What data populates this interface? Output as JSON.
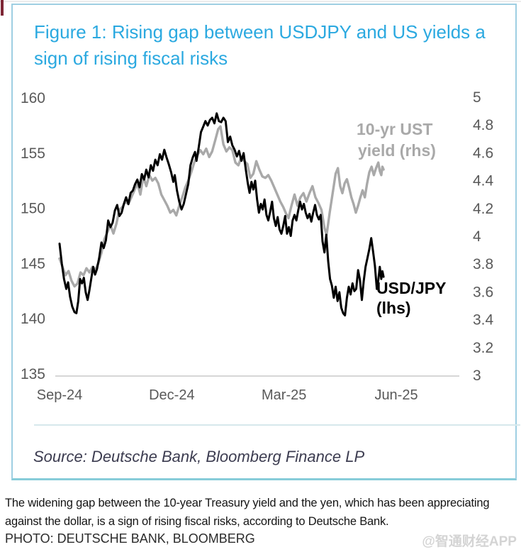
{
  "figure": {
    "title": "Figure 1: Rising gap between USDJPY and US yields a sign of rising fiscal risks",
    "source": "Source: Deutsche Bank, Bloomberg Finance LP"
  },
  "caption": {
    "text": "The widening gap between the 10-year Treasury yield and the yen, which has been appreciating against the dollar, is a sign of rising fiscal risks, according to Deutsche Bank.",
    "photo_credit": "PHOTO: DEUTSCHE BANK, BLOOMBERG",
    "watermark": "@智通财经APP"
  },
  "colors": {
    "title_blue": "#2ba9e0",
    "box_border": "#9ecfe2",
    "axis_text": "#595959",
    "usdjpy_line": "#000000",
    "ust_line": "#a9a9a9",
    "accent_mark": "#7d2635"
  },
  "chart_data": {
    "type": "line",
    "title": "Figure 1: Rising gap between USDJPY and US yields a sign of rising fiscal risks",
    "grid": false,
    "legend_position": "inline-annotations",
    "x_axis": {
      "ticks": [
        "Sep-24",
        "Dec-24",
        "Mar-25",
        "Jun-25"
      ],
      "tick_months": [
        0,
        3,
        6,
        9
      ],
      "unit": "months since Sep-2024"
    },
    "y_axis_left": {
      "ticks": [
        160,
        155,
        150,
        145,
        140,
        135
      ],
      "range": [
        135,
        160
      ]
    },
    "y_axis_right": {
      "ticks": [
        5,
        4.8,
        4.6,
        4.4,
        4.2,
        4,
        3.8,
        3.6,
        3.4,
        3.2,
        3
      ],
      "range": [
        3,
        5
      ]
    },
    "annotations": [
      {
        "lines": [
          "10-yr UST",
          "yield (rhs)"
        ],
        "color": "#a9a9a9",
        "bold": true
      },
      {
        "lines": [
          "USD/JPY",
          "(lhs)"
        ],
        "color": "#000000",
        "bold": true
      }
    ],
    "series": [
      {
        "name": "10-yr UST yield (rhs)",
        "axis": "right",
        "color": "#a9a9a9",
        "width": 3.4,
        "points": [
          [
            0.0,
            3.84
          ],
          [
            0.08,
            3.78
          ],
          [
            0.16,
            3.72
          ],
          [
            0.24,
            3.75
          ],
          [
            0.32,
            3.68
          ],
          [
            0.4,
            3.64
          ],
          [
            0.48,
            3.66
          ],
          [
            0.56,
            3.74
          ],
          [
            0.64,
            3.72
          ],
          [
            0.72,
            3.77
          ],
          [
            0.8,
            3.74
          ],
          [
            0.88,
            3.78
          ],
          [
            0.96,
            3.76
          ],
          [
            1.04,
            3.81
          ],
          [
            1.12,
            3.88
          ],
          [
            1.2,
            3.98
          ],
          [
            1.28,
            4.03
          ],
          [
            1.36,
            4.08
          ],
          [
            1.44,
            4.02
          ],
          [
            1.52,
            4.09
          ],
          [
            1.6,
            4.19
          ],
          [
            1.68,
            4.21
          ],
          [
            1.76,
            4.25
          ],
          [
            1.84,
            4.23
          ],
          [
            1.92,
            4.28
          ],
          [
            2.0,
            4.33
          ],
          [
            2.08,
            4.38
          ],
          [
            2.16,
            4.3
          ],
          [
            2.24,
            4.43
          ],
          [
            2.32,
            4.36
          ],
          [
            2.4,
            4.44
          ],
          [
            2.48,
            4.4
          ],
          [
            2.56,
            4.42
          ],
          [
            2.64,
            4.38
          ],
          [
            2.72,
            4.3
          ],
          [
            2.8,
            4.26
          ],
          [
            2.88,
            4.22
          ],
          [
            2.96,
            4.17
          ],
          [
            3.04,
            4.19
          ],
          [
            3.12,
            4.15
          ],
          [
            3.2,
            4.22
          ],
          [
            3.28,
            4.28
          ],
          [
            3.36,
            4.35
          ],
          [
            3.44,
            4.4
          ],
          [
            3.52,
            4.46
          ],
          [
            3.6,
            4.53
          ],
          [
            3.68,
            4.58
          ],
          [
            3.76,
            4.62
          ],
          [
            3.84,
            4.59
          ],
          [
            3.92,
            4.63
          ],
          [
            4.0,
            4.57
          ],
          [
            4.08,
            4.61
          ],
          [
            4.16,
            4.69
          ],
          [
            4.24,
            4.77
          ],
          [
            4.3,
            4.79
          ],
          [
            4.38,
            4.66
          ],
          [
            4.46,
            4.61
          ],
          [
            4.54,
            4.64
          ],
          [
            4.62,
            4.62
          ],
          [
            4.7,
            4.53
          ],
          [
            4.78,
            4.51
          ],
          [
            4.86,
            4.57
          ],
          [
            4.94,
            4.54
          ],
          [
            5.02,
            4.52
          ],
          [
            5.1,
            4.42
          ],
          [
            5.18,
            4.45
          ],
          [
            5.26,
            4.54
          ],
          [
            5.34,
            4.48
          ],
          [
            5.42,
            4.43
          ],
          [
            5.5,
            4.42
          ],
          [
            5.58,
            4.44
          ],
          [
            5.66,
            4.4
          ],
          [
            5.74,
            4.35
          ],
          [
            5.82,
            4.3
          ],
          [
            5.9,
            4.25
          ],
          [
            5.98,
            4.21
          ],
          [
            6.06,
            4.16
          ],
          [
            6.12,
            4.13
          ],
          [
            6.2,
            4.22
          ],
          [
            6.28,
            4.3
          ],
          [
            6.36,
            4.22
          ],
          [
            6.44,
            4.28
          ],
          [
            6.52,
            4.31
          ],
          [
            6.6,
            4.25
          ],
          [
            6.68,
            4.31
          ],
          [
            6.76,
            4.36
          ],
          [
            6.84,
            4.28
          ],
          [
            6.92,
            4.24
          ],
          [
            7.0,
            4.19
          ],
          [
            7.08,
            4.06
          ],
          [
            7.14,
            4.01
          ],
          [
            7.22,
            4.17
          ],
          [
            7.3,
            4.31
          ],
          [
            7.38,
            4.45
          ],
          [
            7.44,
            4.49
          ],
          [
            7.5,
            4.36
          ],
          [
            7.56,
            4.31
          ],
          [
            7.62,
            4.38
          ],
          [
            7.68,
            4.41
          ],
          [
            7.74,
            4.35
          ],
          [
            7.8,
            4.28
          ],
          [
            7.86,
            4.23
          ],
          [
            7.92,
            4.17
          ],
          [
            7.98,
            4.22
          ],
          [
            8.04,
            4.28
          ],
          [
            8.1,
            4.33
          ],
          [
            8.16,
            4.28
          ],
          [
            8.22,
            4.38
          ],
          [
            8.28,
            4.46
          ],
          [
            8.34,
            4.5
          ],
          [
            8.4,
            4.44
          ],
          [
            8.46,
            4.49
          ],
          [
            8.52,
            4.53
          ],
          [
            8.56,
            4.47
          ],
          [
            8.6,
            4.44
          ],
          [
            8.63,
            4.5
          ],
          [
            8.66,
            4.48
          ]
        ]
      },
      {
        "name": "USD/JPY (lhs)",
        "axis": "left",
        "color": "#000000",
        "width": 3,
        "points": [
          [
            0.0,
            146.8
          ],
          [
            0.06,
            145.0
          ],
          [
            0.12,
            143.6
          ],
          [
            0.18,
            142.7
          ],
          [
            0.23,
            143.3
          ],
          [
            0.28,
            142.0
          ],
          [
            0.34,
            141.1
          ],
          [
            0.4,
            140.6
          ],
          [
            0.45,
            140.5
          ],
          [
            0.5,
            141.6
          ],
          [
            0.55,
            143.6
          ],
          [
            0.6,
            143.2
          ],
          [
            0.65,
            143.7
          ],
          [
            0.7,
            142.4
          ],
          [
            0.75,
            141.7
          ],
          [
            0.8,
            142.6
          ],
          [
            0.85,
            143.7
          ],
          [
            0.9,
            144.7
          ],
          [
            0.95,
            144.0
          ],
          [
            1.0,
            144.5
          ],
          [
            1.06,
            145.5
          ],
          [
            1.12,
            146.9
          ],
          [
            1.18,
            146.4
          ],
          [
            1.24,
            147.1
          ],
          [
            1.3,
            148.9
          ],
          [
            1.36,
            148.3
          ],
          [
            1.42,
            148.7
          ],
          [
            1.48,
            149.8
          ],
          [
            1.54,
            150.3
          ],
          [
            1.6,
            149.3
          ],
          [
            1.66,
            149.6
          ],
          [
            1.72,
            150.4
          ],
          [
            1.78,
            151.0
          ],
          [
            1.84,
            150.4
          ],
          [
            1.9,
            151.4
          ],
          [
            1.96,
            151.6
          ],
          [
            2.02,
            152.2
          ],
          [
            2.08,
            152.6
          ],
          [
            2.14,
            151.9
          ],
          [
            2.2,
            153.1
          ],
          [
            2.26,
            152.6
          ],
          [
            2.32,
            153.5
          ],
          [
            2.38,
            152.8
          ],
          [
            2.44,
            153.9
          ],
          [
            2.5,
            153.4
          ],
          [
            2.56,
            154.4
          ],
          [
            2.62,
            153.9
          ],
          [
            2.68,
            154.9
          ],
          [
            2.74,
            154.4
          ],
          [
            2.8,
            155.3
          ],
          [
            2.86,
            154.6
          ],
          [
            2.92,
            154.0
          ],
          [
            2.98,
            153.3
          ],
          [
            3.04,
            152.4
          ],
          [
            3.08,
            153.0
          ],
          [
            3.14,
            151.6
          ],
          [
            3.2,
            150.6
          ],
          [
            3.26,
            149.9
          ],
          [
            3.32,
            150.4
          ],
          [
            3.38,
            151.3
          ],
          [
            3.44,
            152.2
          ],
          [
            3.5,
            153.9
          ],
          [
            3.56,
            154.6
          ],
          [
            3.62,
            155.1
          ],
          [
            3.66,
            154.3
          ],
          [
            3.72,
            155.5
          ],
          [
            3.78,
            156.9
          ],
          [
            3.84,
            157.4
          ],
          [
            3.9,
            157.9
          ],
          [
            3.96,
            157.5
          ],
          [
            4.02,
            158.0
          ],
          [
            4.08,
            158.2
          ],
          [
            4.14,
            157.7
          ],
          [
            4.2,
            158.6
          ],
          [
            4.26,
            157.9
          ],
          [
            4.32,
            157.8
          ],
          [
            4.38,
            158.2
          ],
          [
            4.44,
            157.9
          ],
          [
            4.5,
            156.0
          ],
          [
            4.56,
            156.5
          ],
          [
            4.62,
            155.7
          ],
          [
            4.68,
            155.3
          ],
          [
            4.74,
            154.7
          ],
          [
            4.8,
            155.2
          ],
          [
            4.86,
            154.3
          ],
          [
            4.92,
            155.0
          ],
          [
            4.98,
            153.5
          ],
          [
            5.03,
            152.3
          ],
          [
            5.08,
            151.4
          ],
          [
            5.13,
            152.4
          ],
          [
            5.18,
            151.7
          ],
          [
            5.23,
            152.5
          ],
          [
            5.28,
            150.8
          ],
          [
            5.33,
            149.6
          ],
          [
            5.38,
            150.4
          ],
          [
            5.43,
            149.9
          ],
          [
            5.48,
            150.8
          ],
          [
            5.53,
            149.4
          ],
          [
            5.58,
            148.9
          ],
          [
            5.63,
            149.7
          ],
          [
            5.68,
            150.6
          ],
          [
            5.73,
            149.1
          ],
          [
            5.78,
            148.4
          ],
          [
            5.83,
            149.2
          ],
          [
            5.88,
            148.1
          ],
          [
            5.93,
            147.7
          ],
          [
            5.98,
            148.4
          ],
          [
            6.03,
            149.3
          ],
          [
            6.08,
            147.7
          ],
          [
            6.13,
            148.3
          ],
          [
            6.18,
            147.5
          ],
          [
            6.23,
            148.9
          ],
          [
            6.28,
            149.4
          ],
          [
            6.33,
            148.9
          ],
          [
            6.38,
            149.8
          ],
          [
            6.43,
            150.6
          ],
          [
            6.48,
            149.9
          ],
          [
            6.53,
            150.4
          ],
          [
            6.58,
            149.6
          ],
          [
            6.63,
            149.1
          ],
          [
            6.68,
            149.5
          ],
          [
            6.73,
            148.8
          ],
          [
            6.78,
            149.6
          ],
          [
            6.83,
            150.3
          ],
          [
            6.88,
            149.4
          ],
          [
            6.93,
            149.0
          ],
          [
            6.98,
            149.4
          ],
          [
            7.03,
            147.0
          ],
          [
            7.08,
            146.0
          ],
          [
            7.13,
            147.6
          ],
          [
            7.18,
            145.2
          ],
          [
            7.23,
            143.6
          ],
          [
            7.28,
            143.0
          ],
          [
            7.33,
            141.9
          ],
          [
            7.38,
            142.9
          ],
          [
            7.43,
            141.6
          ],
          [
            7.48,
            142.4
          ],
          [
            7.53,
            141.0
          ],
          [
            7.58,
            140.5
          ],
          [
            7.63,
            140.3
          ],
          [
            7.68,
            141.9
          ],
          [
            7.73,
            142.9
          ],
          [
            7.78,
            142.2
          ],
          [
            7.83,
            143.2
          ],
          [
            7.88,
            142.5
          ],
          [
            7.93,
            142.7
          ],
          [
            7.98,
            144.4
          ],
          [
            8.03,
            143.5
          ],
          [
            8.08,
            141.7
          ],
          [
            8.13,
            143.4
          ],
          [
            8.18,
            144.7
          ],
          [
            8.23,
            145.5
          ],
          [
            8.28,
            146.3
          ],
          [
            8.33,
            147.3
          ],
          [
            8.38,
            146.1
          ],
          [
            8.43,
            144.8
          ],
          [
            8.48,
            142.7
          ],
          [
            8.52,
            143.5
          ],
          [
            8.56,
            144.7
          ],
          [
            8.6,
            143.6
          ],
          [
            8.63,
            144.3
          ],
          [
            8.66,
            143.8
          ]
        ]
      }
    ]
  }
}
